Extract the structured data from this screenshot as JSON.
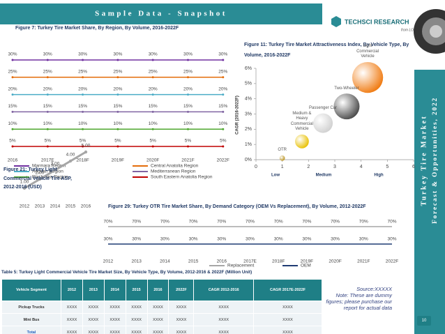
{
  "header": {
    "title": "Sample Data - Snapshot",
    "logo": "TECHSCI RESEARCH",
    "tagline": "from LOW to NEXT"
  },
  "sidebar": {
    "lines": [
      "Turkey Tire Market",
      "Forecast & Opportunities, 2022"
    ]
  },
  "chart_data": [
    {
      "type": "line",
      "title": "Figure 7: Turkey Tire Market Share, By Region, By Volume, 2016-2022F",
      "categories": [
        "2016",
        "2017E",
        "2018F",
        "2019F",
        "2020F",
        "2021F",
        "2022F"
      ],
      "series": [
        {
          "name": "Marmara Region",
          "color": "#7030a0",
          "values": [
            30,
            30,
            30,
            30,
            30,
            30,
            30
          ],
          "value_labels": [
            "30%",
            "30%",
            "30%",
            "30%",
            "30%",
            "30%",
            "30%"
          ]
        },
        {
          "name": "Central Anatolia Region",
          "color": "#e46c0a",
          "values": [
            25,
            25,
            25,
            25,
            25,
            25,
            25
          ],
          "value_labels": [
            "25%",
            "25%",
            "25%",
            "25%",
            "25%",
            "25%",
            "25%"
          ]
        },
        {
          "name": "Aegean Region",
          "color": "#4bacc6",
          "values": [
            20,
            20,
            20,
            20,
            20,
            20,
            20
          ],
          "value_labels": [
            "20%",
            "20%",
            "20%",
            "20%",
            "20%",
            "20%",
            "20%"
          ]
        },
        {
          "name": "Mediterranean Region",
          "color": "#8064a2",
          "values": [
            15,
            15,
            15,
            15,
            15,
            15,
            15
          ],
          "value_labels": [
            "15%",
            "15%",
            "15%",
            "15%",
            "15%",
            "15%",
            "15%"
          ]
        },
        {
          "name": "Black Sea Region",
          "color": "#4ea72e",
          "values": [
            10,
            10,
            10,
            10,
            10,
            10,
            10
          ],
          "value_labels": [
            "10%",
            "10%",
            "10%",
            "10%",
            "10%",
            "10%",
            "10%"
          ]
        },
        {
          "name": "South Eastern Anatolia Region",
          "color": "#c00000",
          "values": [
            5,
            5,
            5,
            5,
            5,
            5,
            5
          ],
          "value_labels": [
            "5%",
            "5%",
            "5%",
            "5%",
            "5%",
            "5%",
            "5%"
          ]
        }
      ],
      "legend": "bottom"
    },
    {
      "type": "bubble",
      "title": "Figure 11: Turkey Tire Market Attractiveness Index, By Vehicle Type, By Volume, 2016-2022F",
      "y_label": "CAGR (2016-2022F)",
      "labels": [
        "OTR",
        "Medium & Heavy Commercial Vehicle",
        "Passenger Car",
        "Two-Wheeler",
        "Light Commercial Vehicle"
      ],
      "x": [
        1,
        1.75,
        2.55,
        3.45,
        4.25
      ],
      "values": [
        0.1,
        1.2,
        2.4,
        3.5,
        5.4
      ],
      "sizes": [
        0.3,
        2,
        4,
        7,
        10
      ],
      "colors": [
        "#b8901a",
        "#e8c000",
        "#d0d0d0",
        "#4a4a4a",
        "#f07a10"
      ],
      "xlim": [
        0,
        6
      ],
      "xticks": [
        0,
        1,
        2,
        3,
        4,
        5,
        6
      ],
      "ylim": [
        0,
        6
      ],
      "yticks": [
        {
          "value": 0,
          "label": "0%"
        },
        {
          "value": 1,
          "label": "1%"
        },
        {
          "value": 2,
          "label": "2%"
        },
        {
          "value": 3,
          "label": "3%"
        },
        {
          "value": 4,
          "label": "4%"
        },
        {
          "value": 5,
          "label": "5%"
        },
        {
          "value": 6,
          "label": "6%"
        }
      ],
      "annotations": [
        "Low",
        "Medium",
        "High"
      ]
    },
    {
      "type": "line",
      "title": "Figure 21: Turkey Light Commercial Vehicle Tire ASP, 2012-2016 (USD)",
      "categories": [
        "2012",
        "2013",
        "2014",
        "2015",
        "2016"
      ],
      "series": [
        {
          "color": "#a6a6a6",
          "values": [
            1,
            2,
            3,
            4,
            5
          ],
          "value_labels": [
            "1.00",
            "2.00",
            "3.00",
            "4.00",
            "5.00"
          ]
        }
      ]
    },
    {
      "type": "line",
      "title": "Figure 29: Turkey OTR Tire Market Share, By Demand Category (OEM Vs Replacement), By Volume, 2012-2022F",
      "categories": [
        "2012",
        "2013",
        "2014",
        "2015",
        "2016",
        "2017E",
        "2018F",
        "2019F",
        "2020F",
        "2021F",
        "2022F"
      ],
      "series": [
        {
          "name": "Replacement",
          "color": "#a6a6a6",
          "values": [
            70,
            70,
            70,
            70,
            70,
            70,
            70,
            70,
            70,
            70,
            70
          ],
          "value_labels": [
            "70%",
            "70%",
            "70%",
            "70%",
            "70%",
            "70%",
            "70%",
            "70%",
            "70%",
            "70%",
            "70%"
          ]
        },
        {
          "name": "OEM",
          "color": "#1f3b73",
          "values": [
            30,
            30,
            30,
            30,
            30,
            30,
            30,
            30,
            30,
            30,
            30
          ],
          "value_labels": [
            "30%",
            "30%",
            "30%",
            "30%",
            "30%",
            "30%",
            "30%",
            "30%",
            "30%",
            "30%",
            "30%"
          ]
        }
      ],
      "legend": "bottom"
    }
  ],
  "table": {
    "title": "Table 5: Turkey Light Commercial Vehicle Tire Market Size, By Vehicle Type, By Volume, 2012-2016 & 2022F (Million Unit)",
    "header": [
      "Vehicle Segment",
      "2012",
      "2013",
      "2014",
      "2015",
      "2016",
      "2022F",
      "CAGR 2012-2016",
      "CAGR 2017E-2022F"
    ],
    "rows": [
      [
        "Pickup Trucks",
        "XXXX",
        "XXXX",
        "XXXX",
        "XXXX",
        "XXXX",
        "XXXX",
        "XXXX",
        "XXXX"
      ],
      [
        "Mini Bus",
        "XXXX",
        "XXXX",
        "XXXX",
        "XXXX",
        "XXXX",
        "XXXX",
        "XXXX",
        "XXXX"
      ],
      [
        "Total",
        "XXXX",
        "XXXX",
        "XXXX",
        "XXXX",
        "XXXX",
        "XXXX",
        "XXXX",
        "XXXX"
      ]
    ]
  },
  "note": {
    "source": "Source:XXXXX",
    "text": "Note: These are dummy figures; please purchase our report for actual data"
  },
  "page_number": 10
}
